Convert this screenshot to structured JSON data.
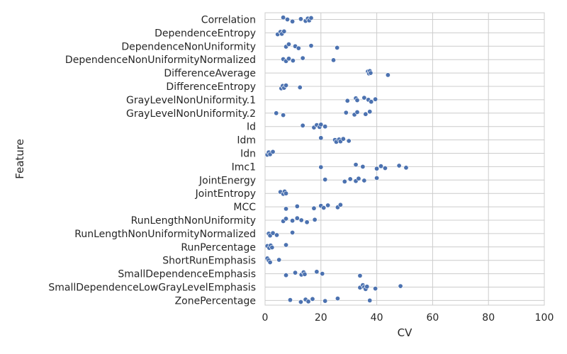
{
  "chart_data": {
    "type": "scatter",
    "title": "",
    "xlabel": "CV",
    "ylabel": "Feature",
    "xlim": [
      0,
      100
    ],
    "xticks": [
      "0",
      "20",
      "40",
      "60",
      "80",
      "100"
    ],
    "grid": true,
    "marker_color": "#4c72b0",
    "categories": [
      "Correlation",
      "DependenceEntropy",
      "DependenceNonUniformity",
      "DependenceNonUniformityNormalized",
      "DifferenceAverage",
      "DifferenceEntropy",
      "GrayLevelNonUniformity.1",
      "GrayLevelNonUniformity.2",
      "Id",
      "Idm",
      "Idn",
      "Imc1",
      "JointEnergy",
      "JointEntropy",
      "MCC",
      "RunLengthNonUniformity",
      "RunLengthNonUniformityNormalized",
      "RunPercentage",
      "ShortRunEmphasis",
      "SmallDependenceEmphasis",
      "SmallDependenceLowGrayLevelEmphasis",
      "ZonePercentage"
    ],
    "values": [
      [
        6.5,
        8.0,
        9.8,
        12.8,
        14.5,
        15.3,
        15.8,
        16.5
      ],
      [
        4.5,
        5.5,
        6.0,
        6.8
      ],
      [
        7.5,
        8.5,
        10.8,
        12.0,
        16.5,
        25.8
      ],
      [
        6.5,
        7.5,
        8.5,
        10.0,
        13.5,
        24.5
      ],
      [
        36.8,
        37.2,
        37.5,
        37.8,
        44.0
      ],
      [
        5.8,
        6.3,
        6.8,
        7.5,
        12.5
      ],
      [
        29.5,
        32.5,
        33.0,
        35.5,
        37.0,
        38.0,
        39.5
      ],
      [
        4.0,
        6.5,
        29.0,
        32.0,
        33.0,
        36.0,
        37.5
      ],
      [
        13.5,
        17.5,
        18.5,
        19.5,
        20.0,
        21.5
      ],
      [
        20.0,
        25.0,
        25.5,
        26.5,
        27.0,
        28.0,
        30.0
      ],
      [
        0.8,
        1.3,
        1.8,
        2.8
      ],
      [
        20.0,
        32.5,
        35.0,
        40.0,
        41.5,
        43.0,
        48.0,
        50.5
      ],
      [
        21.5,
        28.5,
        30.5,
        32.5,
        33.5,
        35.5,
        40.0
      ],
      [
        5.5,
        6.5,
        7.0,
        7.5
      ],
      [
        7.5,
        11.5,
        17.5,
        20.0,
        21.0,
        22.5,
        26.0,
        27.0
      ],
      [
        6.5,
        7.5,
        9.8,
        11.5,
        13.0,
        15.0,
        17.8
      ],
      [
        1.3,
        1.8,
        2.8,
        4.2,
        9.8
      ],
      [
        0.8,
        1.5,
        2.0,
        2.5,
        7.5
      ],
      [
        0.8,
        1.3,
        1.8,
        5.0
      ],
      [
        7.5,
        10.8,
        13.0,
        13.8,
        14.2,
        18.5,
        20.5,
        34.0
      ],
      [
        34.0,
        35.0,
        35.5,
        36.0,
        36.5,
        39.5,
        48.5
      ],
      [
        9.0,
        12.8,
        14.5,
        15.5,
        17.0,
        21.5,
        26.0,
        37.5
      ]
    ]
  }
}
